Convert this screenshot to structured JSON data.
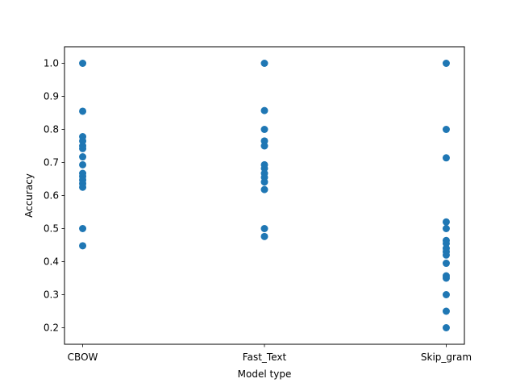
{
  "chart_data": {
    "type": "scatter",
    "xlabel": "Model type",
    "ylabel": "Accuracy",
    "categories": [
      "CBOW",
      "Fast_Text",
      "Skip_gram"
    ],
    "ylim": [
      0.15,
      1.05
    ],
    "yticks": [
      0.2,
      0.3,
      0.4,
      0.5,
      0.6,
      0.7,
      0.8,
      0.9,
      1.0
    ],
    "ytick_labels": [
      "0.2",
      "0.3",
      "0.4",
      "0.5",
      "0.6",
      "0.7",
      "0.8",
      "0.9",
      "1.0"
    ],
    "grid": false,
    "marker_color": "#1f77b4",
    "points": [
      {
        "x": "CBOW",
        "y": 1.0
      },
      {
        "x": "CBOW",
        "y": 0.855
      },
      {
        "x": "CBOW",
        "y": 0.778
      },
      {
        "x": "CBOW",
        "y": 0.765
      },
      {
        "x": "CBOW",
        "y": 0.75
      },
      {
        "x": "CBOW",
        "y": 0.742
      },
      {
        "x": "CBOW",
        "y": 0.717
      },
      {
        "x": "CBOW",
        "y": 0.693
      },
      {
        "x": "CBOW",
        "y": 0.667
      },
      {
        "x": "CBOW",
        "y": 0.658
      },
      {
        "x": "CBOW",
        "y": 0.647
      },
      {
        "x": "CBOW",
        "y": 0.636
      },
      {
        "x": "CBOW",
        "y": 0.625
      },
      {
        "x": "CBOW",
        "y": 0.5
      },
      {
        "x": "CBOW",
        "y": 0.448
      },
      {
        "x": "Fast_Text",
        "y": 1.0
      },
      {
        "x": "Fast_Text",
        "y": 0.857
      },
      {
        "x": "Fast_Text",
        "y": 0.8
      },
      {
        "x": "Fast_Text",
        "y": 0.765
      },
      {
        "x": "Fast_Text",
        "y": 0.75
      },
      {
        "x": "Fast_Text",
        "y": 0.693
      },
      {
        "x": "Fast_Text",
        "y": 0.682
      },
      {
        "x": "Fast_Text",
        "y": 0.667
      },
      {
        "x": "Fast_Text",
        "y": 0.655
      },
      {
        "x": "Fast_Text",
        "y": 0.641
      },
      {
        "x": "Fast_Text",
        "y": 0.618
      },
      {
        "x": "Fast_Text",
        "y": 0.5
      },
      {
        "x": "Fast_Text",
        "y": 0.476
      },
      {
        "x": "Skip_gram",
        "y": 1.0
      },
      {
        "x": "Skip_gram",
        "y": 0.8
      },
      {
        "x": "Skip_gram",
        "y": 0.714
      },
      {
        "x": "Skip_gram",
        "y": 0.52
      },
      {
        "x": "Skip_gram",
        "y": 0.5
      },
      {
        "x": "Skip_gram",
        "y": 0.464
      },
      {
        "x": "Skip_gram",
        "y": 0.455
      },
      {
        "x": "Skip_gram",
        "y": 0.44
      },
      {
        "x": "Skip_gram",
        "y": 0.43
      },
      {
        "x": "Skip_gram",
        "y": 0.42
      },
      {
        "x": "Skip_gram",
        "y": 0.395
      },
      {
        "x": "Skip_gram",
        "y": 0.357
      },
      {
        "x": "Skip_gram",
        "y": 0.35
      },
      {
        "x": "Skip_gram",
        "y": 0.3
      },
      {
        "x": "Skip_gram",
        "y": 0.25
      },
      {
        "x": "Skip_gram",
        "y": 0.2
      }
    ]
  }
}
